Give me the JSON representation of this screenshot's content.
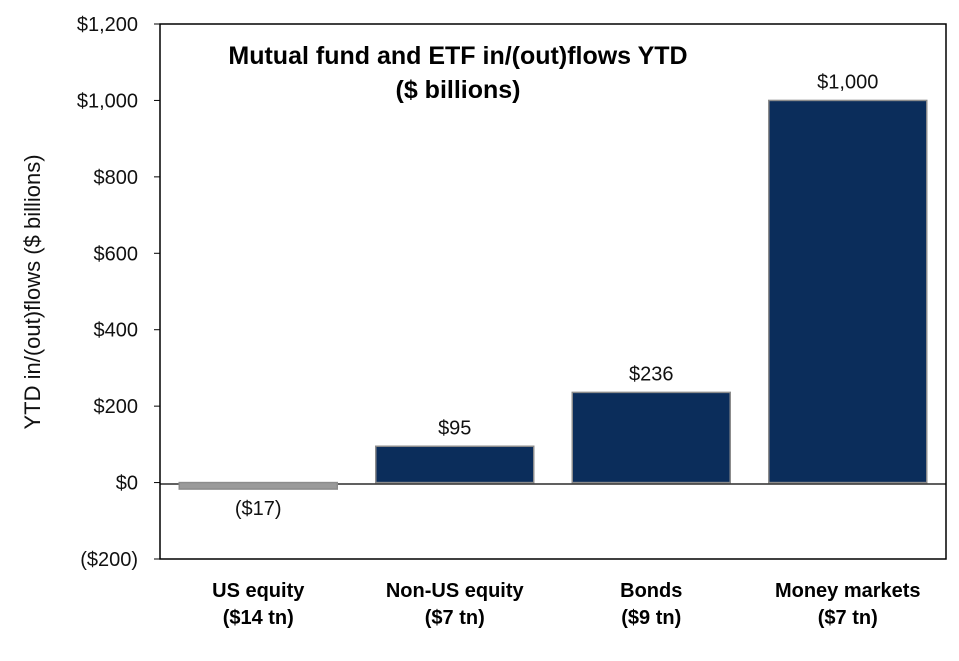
{
  "chart_data": {
    "type": "bar",
    "title": "Mutual fund and ETF in/(out)flows YTD",
    "subtitle": "($ billions)",
    "ylabel": "YTD in/(out)flows ($ billions)",
    "xlabel": "",
    "categories": [
      {
        "name": "US equity",
        "sub": "($14 tn)"
      },
      {
        "name": "Non-US equity",
        "sub": "($7 tn)"
      },
      {
        "name": "Bonds",
        "sub": "($9 tn)"
      },
      {
        "name": "Money markets",
        "sub": "($7 tn)"
      }
    ],
    "values": [
      -17,
      95,
      236,
      1000
    ],
    "data_labels": [
      "($17)",
      "$95",
      "$236",
      "$1,000"
    ],
    "ylim": [
      -200,
      1200
    ],
    "yticks": [
      -200,
      0,
      200,
      400,
      600,
      800,
      1000,
      1200
    ],
    "ytick_labels": [
      "($200)",
      "$0",
      "$200",
      "$400",
      "$600",
      "$800",
      "$1,000",
      "$1,200"
    ],
    "grid": false,
    "legend": "none",
    "colors": {
      "positive": "#0b2d5b",
      "negative": "#9a9a9a",
      "bar_edge": "#8c8c8c",
      "axis": "#000000"
    }
  }
}
